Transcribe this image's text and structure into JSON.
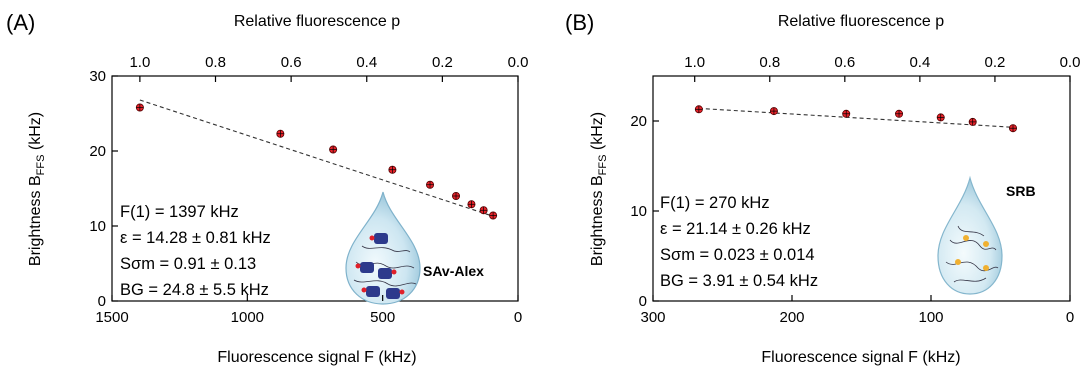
{
  "chart_data": [
    {
      "type": "scatter",
      "panel_label": "(A)",
      "xlabel": "Fluorescence signal F (kHz)",
      "ylabel_main": "Brightness B",
      "ylabel_sub": "FFS",
      "ylabel_unit": " (kHz)",
      "top_xlabel": "Relative fluorescence p",
      "xlim": [
        1500,
        0
      ],
      "ylim": [
        0,
        30
      ],
      "x_ticks": [
        1500,
        1000,
        500,
        0
      ],
      "y_ticks": [
        0,
        10,
        20,
        30
      ],
      "top_ticks": [
        "1.0",
        "0.8",
        "0.6",
        "0.4",
        "0.2",
        "0.0"
      ],
      "top_tick_values": [
        1.0,
        0.8,
        0.6,
        0.4,
        0.2,
        0.0
      ],
      "top_p1_F": 1397,
      "points": [
        {
          "x": 1397,
          "y": 25.8
        },
        {
          "x": 878,
          "y": 22.3
        },
        {
          "x": 683,
          "y": 20.2
        },
        {
          "x": 464,
          "y": 17.5
        },
        {
          "x": 325,
          "y": 15.5
        },
        {
          "x": 229,
          "y": 14.0
        },
        {
          "x": 172,
          "y": 12.9
        },
        {
          "x": 127,
          "y": 12.1
        },
        {
          "x": 92,
          "y": 11.4
        }
      ],
      "fit_line": [
        {
          "x": 1397,
          "y": 26.8
        },
        {
          "x": 92,
          "y": 11.3
        }
      ],
      "annotations": [
        "F(1) = 1397 kHz",
        "ε = 14.28 ± 0.81 kHz",
        "S",
        "σm = 0.91 ± 0.13",
        "BG = 24.8 ± 5.5 kHz"
      ],
      "drop_label": "SAv-Alex"
    },
    {
      "type": "scatter",
      "panel_label": "(B)",
      "xlabel": "Fluorescence signal F (kHz)",
      "ylabel_main": "Brightness B",
      "ylabel_sub": "FFS",
      "ylabel_unit": " (kHz)",
      "top_xlabel": "Relative fluorescence p",
      "xlim": [
        300,
        0
      ],
      "ylim": [
        0,
        25
      ],
      "x_ticks": [
        300,
        200,
        100,
        0
      ],
      "y_ticks": [
        0,
        10,
        20
      ],
      "top_ticks": [
        "1.0",
        "0.8",
        "0.6",
        "0.4",
        "0.2",
        "0.0"
      ],
      "top_tick_values": [
        1.0,
        0.8,
        0.6,
        0.4,
        0.2,
        0.0
      ],
      "top_p1_F": 270,
      "points": [
        {
          "x": 267,
          "y": 21.3
        },
        {
          "x": 213,
          "y": 21.1
        },
        {
          "x": 161,
          "y": 20.8
        },
        {
          "x": 123,
          "y": 20.8
        },
        {
          "x": 93,
          "y": 20.4
        },
        {
          "x": 70,
          "y": 19.9
        },
        {
          "x": 41,
          "y": 19.2
        }
      ],
      "fit_line": [
        {
          "x": 267,
          "y": 21.4
        },
        {
          "x": 41,
          "y": 19.3
        }
      ],
      "annotations": [
        "F(1) = 270 kHz",
        "ε = 21.14 ± 0.26 kHz",
        "S",
        "σm = 0.023 ± 0.014",
        "BG = 3.91 ± 0.54 kHz"
      ],
      "drop_label": "SRB"
    }
  ]
}
